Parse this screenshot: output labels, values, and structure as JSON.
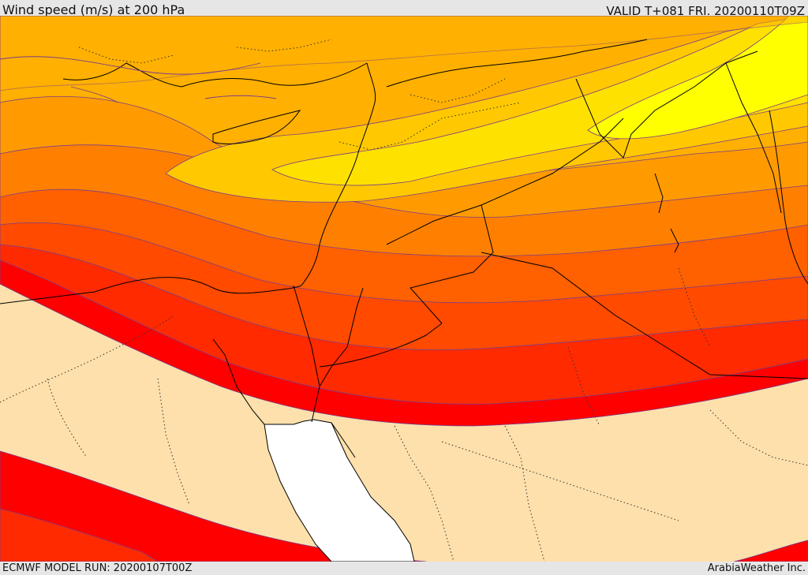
{
  "header": {
    "title": "Wind speed (m/s) at 200 hPa",
    "valid": "VALID T+081 FRI. 20200110T09Z"
  },
  "footer": {
    "model_run": "ECMWF MODEL RUN: 20200107T00Z",
    "credit": "ArabiaWeather Inc."
  },
  "map": {
    "field": "wind speed",
    "level": "200 hPa",
    "region": "Eastern Mediterranean / Levant / Arabian Peninsula",
    "colors": {
      "bright_yellow": "#ffff00",
      "yellow": "#ffe100",
      "light_orange": "#ffc800",
      "orange_yellow": "#ffb000",
      "orange": "#ff9b00",
      "dark_orange": "#ff8000",
      "red_orange": "#ff6000",
      "deep_orange": "#ff4a00",
      "orange_red": "#ff2a00",
      "red": "#ff0000",
      "background": "#fde0ab",
      "sea_white": "#ffffff"
    }
  }
}
